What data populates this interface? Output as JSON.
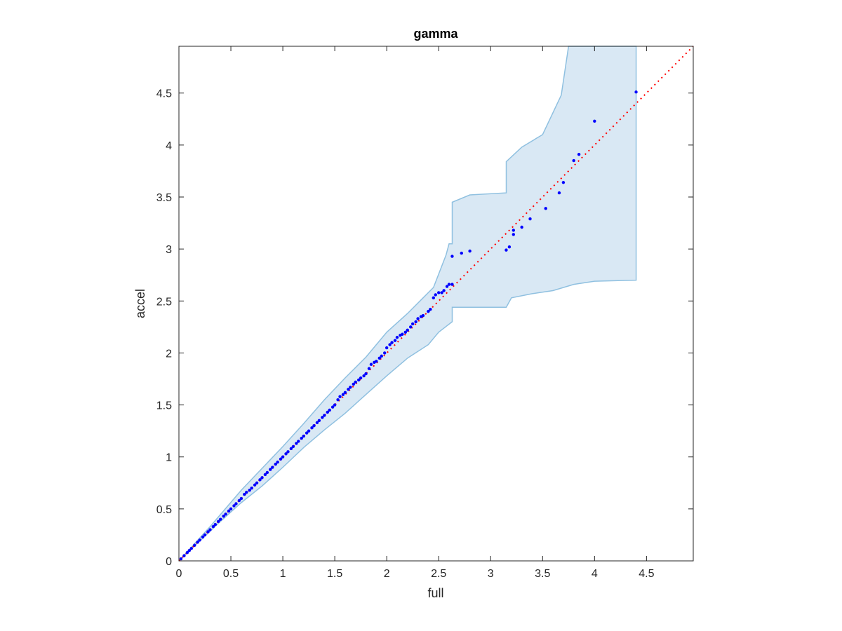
{
  "chart_data": {
    "type": "scatter",
    "title": "gamma",
    "xlabel": "full",
    "ylabel": "accel",
    "xlim": [
      0,
      4.95
    ],
    "ylim": [
      0,
      4.95
    ],
    "grid": false,
    "xticks": [
      0,
      0.5,
      1,
      1.5,
      2,
      2.5,
      3,
      3.5,
      4,
      4.5
    ],
    "yticks": [
      0,
      0.5,
      1,
      1.5,
      2,
      2.5,
      3,
      3.5,
      4,
      4.5
    ],
    "xtick_labels": [
      "0",
      "0.5",
      "1",
      "1.5",
      "2",
      "2.5",
      "3",
      "3.5",
      "4",
      "4.5"
    ],
    "ytick_labels": [
      "0",
      "0.5",
      "1",
      "1.5",
      "2",
      "2.5",
      "3",
      "3.5",
      "4",
      "4.5"
    ],
    "colors": {
      "points": "#0000ff",
      "reference_line": "#ff0000",
      "band_fill": "#d9e8f4",
      "band_edge": "#8fc0e0",
      "axes": "#262626"
    },
    "reference_line": {
      "style": "dotted",
      "from": [
        0,
        0
      ],
      "to": [
        4.95,
        4.95
      ]
    },
    "band": {
      "upper": [
        [
          0,
          0
        ],
        [
          0.3,
          0.33
        ],
        [
          0.6,
          0.68
        ],
        [
          1.0,
          1.1
        ],
        [
          1.2,
          1.32
        ],
        [
          1.4,
          1.55
        ],
        [
          1.6,
          1.76
        ],
        [
          1.8,
          1.96
        ],
        [
          2.0,
          2.2
        ],
        [
          2.2,
          2.38
        ],
        [
          2.35,
          2.53
        ],
        [
          2.45,
          2.63
        ],
        [
          2.57,
          2.94
        ],
        [
          2.6,
          3.05
        ],
        [
          2.63,
          3.05
        ],
        [
          2.63,
          3.45
        ],
        [
          2.8,
          3.52
        ],
        [
          3.15,
          3.54
        ],
        [
          3.15,
          3.84
        ],
        [
          3.3,
          3.98
        ],
        [
          3.5,
          4.1
        ],
        [
          3.68,
          4.48
        ],
        [
          3.75,
          4.95
        ],
        [
          4.4,
          4.95
        ]
      ],
      "lower": [
        [
          4.4,
          2.7
        ],
        [
          4.0,
          2.69
        ],
        [
          3.8,
          2.66
        ],
        [
          3.6,
          2.6
        ],
        [
          3.4,
          2.57
        ],
        [
          3.2,
          2.53
        ],
        [
          3.15,
          2.44
        ],
        [
          2.63,
          2.44
        ],
        [
          2.63,
          2.3
        ],
        [
          2.5,
          2.2
        ],
        [
          2.4,
          2.08
        ],
        [
          2.2,
          1.95
        ],
        [
          2.0,
          1.78
        ],
        [
          1.8,
          1.6
        ],
        [
          1.6,
          1.42
        ],
        [
          1.4,
          1.26
        ],
        [
          1.2,
          1.09
        ],
        [
          1.0,
          0.9
        ],
        [
          0.8,
          0.72
        ],
        [
          0.6,
          0.56
        ],
        [
          0.4,
          0.38
        ],
        [
          0.2,
          0.19
        ],
        [
          0,
          0
        ]
      ]
    },
    "points": [
      [
        0.02,
        0.02
      ],
      [
        0.05,
        0.05
      ],
      [
        0.08,
        0.08
      ],
      [
        0.1,
        0.1
      ],
      [
        0.12,
        0.12
      ],
      [
        0.15,
        0.15
      ],
      [
        0.18,
        0.18
      ],
      [
        0.2,
        0.2
      ],
      [
        0.23,
        0.23
      ],
      [
        0.25,
        0.25
      ],
      [
        0.28,
        0.28
      ],
      [
        0.3,
        0.3
      ],
      [
        0.33,
        0.33
      ],
      [
        0.35,
        0.35
      ],
      [
        0.38,
        0.38
      ],
      [
        0.4,
        0.4
      ],
      [
        0.43,
        0.43
      ],
      [
        0.45,
        0.45
      ],
      [
        0.48,
        0.48
      ],
      [
        0.5,
        0.5
      ],
      [
        0.53,
        0.53
      ],
      [
        0.55,
        0.55
      ],
      [
        0.58,
        0.58
      ],
      [
        0.6,
        0.6
      ],
      [
        0.63,
        0.64
      ],
      [
        0.65,
        0.66
      ],
      [
        0.68,
        0.68
      ],
      [
        0.7,
        0.7
      ],
      [
        0.73,
        0.73
      ],
      [
        0.75,
        0.75
      ],
      [
        0.78,
        0.78
      ],
      [
        0.8,
        0.8
      ],
      [
        0.83,
        0.83
      ],
      [
        0.85,
        0.85
      ],
      [
        0.88,
        0.88
      ],
      [
        0.9,
        0.9
      ],
      [
        0.93,
        0.93
      ],
      [
        0.95,
        0.95
      ],
      [
        0.98,
        0.98
      ],
      [
        1.0,
        1.0
      ],
      [
        1.03,
        1.03
      ],
      [
        1.05,
        1.05
      ],
      [
        1.08,
        1.08
      ],
      [
        1.1,
        1.1
      ],
      [
        1.13,
        1.13
      ],
      [
        1.15,
        1.15
      ],
      [
        1.18,
        1.18
      ],
      [
        1.2,
        1.2
      ],
      [
        1.23,
        1.23
      ],
      [
        1.25,
        1.25
      ],
      [
        1.28,
        1.28
      ],
      [
        1.3,
        1.3
      ],
      [
        1.33,
        1.33
      ],
      [
        1.35,
        1.35
      ],
      [
        1.38,
        1.38
      ],
      [
        1.4,
        1.4
      ],
      [
        1.43,
        1.43
      ],
      [
        1.45,
        1.45
      ],
      [
        1.48,
        1.48
      ],
      [
        1.5,
        1.5
      ],
      [
        1.53,
        1.55
      ],
      [
        1.55,
        1.58
      ],
      [
        1.58,
        1.6
      ],
      [
        1.6,
        1.62
      ],
      [
        1.63,
        1.65
      ],
      [
        1.65,
        1.67
      ],
      [
        1.68,
        1.7
      ],
      [
        1.7,
        1.72
      ],
      [
        1.73,
        1.74
      ],
      [
        1.75,
        1.76
      ],
      [
        1.78,
        1.78
      ],
      [
        1.8,
        1.8
      ],
      [
        1.83,
        1.85
      ],
      [
        1.85,
        1.89
      ],
      [
        1.88,
        1.91
      ],
      [
        1.9,
        1.92
      ],
      [
        1.93,
        1.95
      ],
      [
        1.95,
        1.97
      ],
      [
        1.98,
        2.0
      ],
      [
        2.0,
        2.05
      ],
      [
        2.03,
        2.08
      ],
      [
        2.05,
        2.1
      ],
      [
        2.08,
        2.12
      ],
      [
        2.1,
        2.15
      ],
      [
        2.13,
        2.17
      ],
      [
        2.15,
        2.18
      ],
      [
        2.18,
        2.2
      ],
      [
        2.2,
        2.22
      ],
      [
        2.23,
        2.25
      ],
      [
        2.25,
        2.28
      ],
      [
        2.28,
        2.3
      ],
      [
        2.3,
        2.33
      ],
      [
        2.33,
        2.35
      ],
      [
        2.35,
        2.36
      ],
      [
        2.4,
        2.4
      ],
      [
        2.42,
        2.42
      ],
      [
        2.45,
        2.53
      ],
      [
        2.47,
        2.56
      ],
      [
        2.5,
        2.58
      ],
      [
        2.53,
        2.58
      ],
      [
        2.55,
        2.6
      ],
      [
        2.58,
        2.64
      ],
      [
        2.6,
        2.66
      ],
      [
        2.63,
        2.66
      ],
      [
        2.63,
        2.93
      ],
      [
        2.72,
        2.96
      ],
      [
        2.8,
        2.98
      ],
      [
        3.15,
        2.99
      ],
      [
        3.18,
        3.02
      ],
      [
        3.22,
        3.14
      ],
      [
        3.22,
        3.18
      ],
      [
        3.3,
        3.21
      ],
      [
        3.38,
        3.29
      ],
      [
        3.53,
        3.39
      ],
      [
        3.66,
        3.54
      ],
      [
        3.7,
        3.64
      ],
      [
        3.8,
        3.85
      ],
      [
        3.85,
        3.91
      ],
      [
        4.0,
        4.23
      ],
      [
        4.4,
        4.51
      ]
    ]
  }
}
